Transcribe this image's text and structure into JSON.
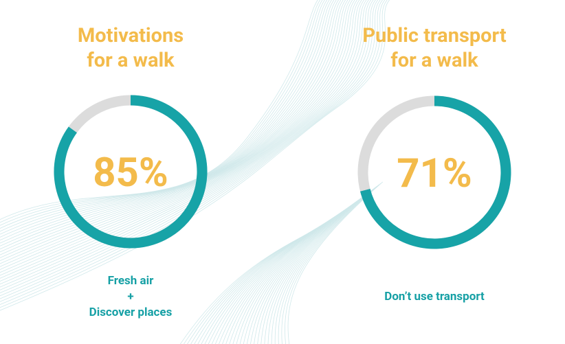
{
  "chart_data": [
    {
      "type": "donut",
      "title": "Motivations\nfor a walk",
      "value": 85,
      "value_label": "85%",
      "caption": "Fresh air\n+\nDiscover places",
      "ylim": [
        0,
        100
      ],
      "color": "#17a3a7",
      "track_color": "#dcdcdc"
    },
    {
      "type": "donut",
      "title": "Public transport\nfor a walk",
      "value": 71,
      "value_label": "71%",
      "caption": "Don’t use transport",
      "ylim": [
        0,
        100
      ],
      "color": "#17a3a7",
      "track_color": "#dcdcdc"
    }
  ]
}
